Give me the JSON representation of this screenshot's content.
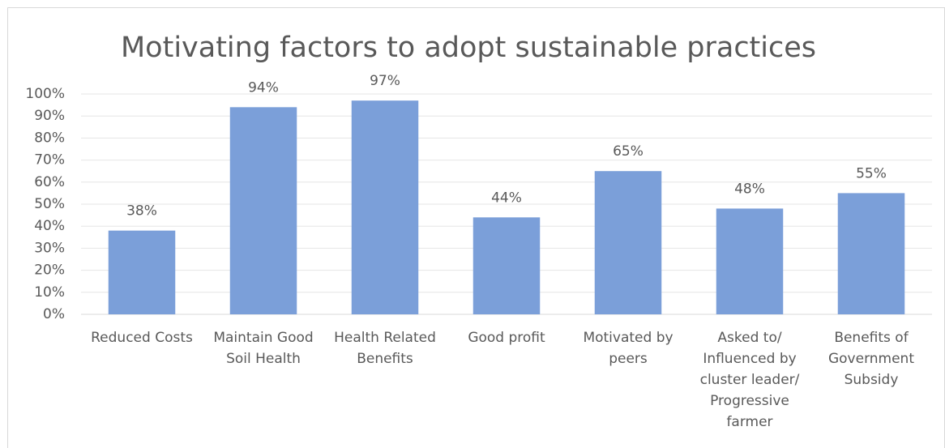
{
  "chart_data": {
    "type": "bar",
    "title": "Motivating factors to adopt sustainable practices",
    "categories": [
      "Reduced Costs",
      "Maintain Good Soil Health",
      "Health Related Benefits",
      "Good profit",
      "Motivated by peers",
      "Asked to/ Influenced by cluster leader/ Progressive farmer",
      "Benefits of Government Subsidy"
    ],
    "values": [
      38,
      94,
      97,
      44,
      65,
      48,
      55
    ],
    "value_labels": [
      "38%",
      "94%",
      "97%",
      "44%",
      "65%",
      "48%",
      "55%"
    ],
    "color": "#7b9fd9",
    "ylim": [
      0,
      100
    ],
    "yticks": [
      {
        "value": 0,
        "label": "0%"
      },
      {
        "value": 10,
        "label": "10%"
      },
      {
        "value": 20,
        "label": "20%"
      },
      {
        "value": 30,
        "label": "30%"
      },
      {
        "value": 40,
        "label": "40%"
      },
      {
        "value": 50,
        "label": "50%"
      },
      {
        "value": 60,
        "label": "60%"
      },
      {
        "value": 70,
        "label": "70%"
      },
      {
        "value": 80,
        "label": "80%"
      },
      {
        "value": 90,
        "label": "90%"
      },
      {
        "value": 100,
        "label": "100%"
      }
    ],
    "grid": true
  }
}
